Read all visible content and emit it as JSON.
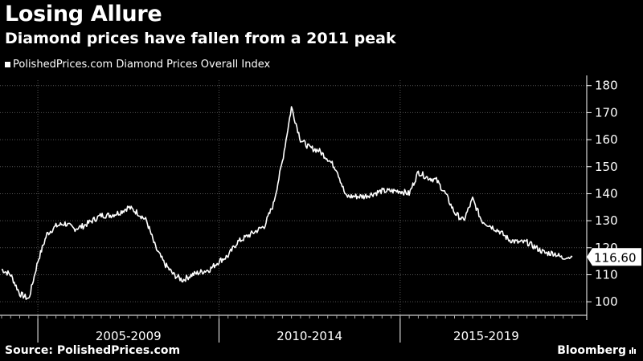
{
  "header": {
    "title": "Losing Allure",
    "subtitle": "Diamond prices have fallen from a 2011 peak"
  },
  "footer": {
    "source": "Source: PolishedPrices.com",
    "brand": "Bloomberg",
    "brand_icon": "bar-chart-icon"
  },
  "chart_data": {
    "type": "line",
    "title": "Losing Allure",
    "subtitle": "Diamond prices have fallen from a 2011 peak",
    "series": [
      {
        "name": "PolishedPrices.com Diamond Prices Overall Index",
        "color": "#ffffff",
        "x": [
          "2004-01",
          "2004-04",
          "2004-07",
          "2004-10",
          "2005-01",
          "2005-04",
          "2005-07",
          "2005-10",
          "2006-01",
          "2006-04",
          "2006-07",
          "2006-10",
          "2007-01",
          "2007-04",
          "2007-07",
          "2007-10",
          "2008-01",
          "2008-04",
          "2008-07",
          "2008-10",
          "2009-01",
          "2009-04",
          "2009-07",
          "2009-10",
          "2010-01",
          "2010-04",
          "2010-07",
          "2010-10",
          "2011-01",
          "2011-04",
          "2011-07",
          "2011-10",
          "2012-01",
          "2012-04",
          "2012-07",
          "2012-10",
          "2013-01",
          "2013-04",
          "2013-07",
          "2013-10",
          "2014-01",
          "2014-04",
          "2014-07",
          "2014-10",
          "2015-01",
          "2015-04",
          "2015-07",
          "2015-10",
          "2016-01",
          "2016-04",
          "2016-07",
          "2016-10",
          "2017-01",
          "2017-04",
          "2017-07",
          "2017-10",
          "2018-01",
          "2018-04",
          "2018-07",
          "2018-10",
          "2019-01",
          "2019-04",
          "2019-07",
          "2019-10"
        ],
        "values": [
          112,
          110,
          103,
          101,
          115,
          125,
          128,
          129,
          127,
          128,
          130,
          132,
          132,
          133,
          135,
          133,
          130,
          120,
          114,
          110,
          108,
          110,
          111,
          112,
          115,
          117,
          122,
          124,
          126,
          128,
          136,
          152,
          172,
          160,
          157,
          156,
          153,
          149,
          139,
          139,
          139,
          140,
          141,
          141,
          141,
          140,
          148,
          146,
          145,
          140,
          133,
          130,
          138,
          130,
          128,
          126,
          123,
          122,
          122,
          120,
          118,
          118,
          116,
          116.6
        ]
      }
    ],
    "ylim": [
      95,
      182
    ],
    "yticks": [
      100,
      110,
      120,
      130,
      140,
      150,
      160,
      170,
      180
    ],
    "x_period_labels": [
      "2005-2009",
      "2010-2014",
      "2015-2019"
    ],
    "last_value_label": "116.60",
    "grid": true,
    "legend_position": "top-left"
  }
}
